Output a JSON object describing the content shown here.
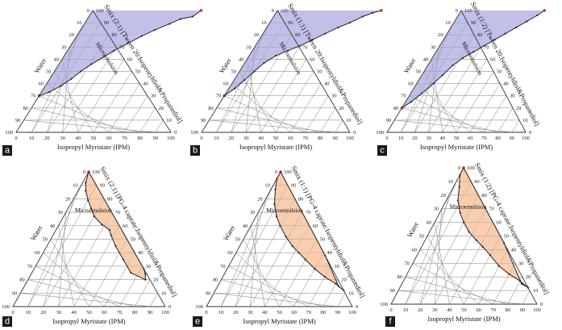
{
  "colors": {
    "purple_fill": "#b9b9e6",
    "orange_fill": "#f7c9a5",
    "boundary": "#222222",
    "grid": "#9a9a9a",
    "marker": "#d62828",
    "label_bg": "#1a1a1a"
  },
  "chart_data": [
    {
      "type": "ternary",
      "panel": "a",
      "left_label": "Water",
      "bottom_label": "Isopropyl Myristate (IPM)",
      "right_label": "Smix (2:1) [Tween 20:Isopentyldiol&Propanediol]",
      "region_label": "Microemulsion",
      "ticks": [
        0,
        10,
        20,
        30,
        40,
        50,
        60,
        70,
        80,
        90,
        100
      ],
      "fill": "purple",
      "boundary": [
        [
          0,
          30
        ],
        [
          5,
          33
        ],
        [
          10,
          38
        ],
        [
          14,
          44
        ],
        [
          17,
          50
        ],
        [
          21,
          56
        ],
        [
          26,
          62
        ],
        [
          30,
          67
        ],
        [
          36,
          73
        ],
        [
          42,
          79
        ],
        [
          48,
          84
        ],
        [
          55,
          89
        ],
        [
          60,
          93
        ],
        [
          67,
          95
        ],
        [
          70,
          100
        ]
      ],
      "red_points": [
        [
          0,
          30
        ],
        [
          70,
          100
        ]
      ]
    },
    {
      "type": "ternary",
      "panel": "b",
      "left_label": "Water",
      "bottom_label": "Isopropyl Myristate (IPM)",
      "right_label": "Smix (1:1) [Tween 20:Isopentyldiol&Propanediol]",
      "region_label": "Microemulsion",
      "ticks": [
        0,
        10,
        20,
        30,
        40,
        50,
        60,
        70,
        80,
        90,
        100
      ],
      "fill": "purple",
      "boundary": [
        [
          0,
          30
        ],
        [
          4,
          36
        ],
        [
          7,
          43
        ],
        [
          10,
          50
        ],
        [
          13,
          57
        ],
        [
          18,
          63
        ],
        [
          24,
          67
        ],
        [
          30,
          71
        ],
        [
          36,
          76
        ],
        [
          42,
          81
        ],
        [
          48,
          86
        ],
        [
          54,
          90
        ],
        [
          60,
          95
        ],
        [
          65,
          98
        ],
        [
          70,
          100
        ]
      ],
      "red_points": [
        [
          0,
          30
        ],
        [
          70,
          100
        ]
      ]
    },
    {
      "type": "ternary",
      "panel": "c",
      "left_label": "Water",
      "bottom_label": "Isopropyl Myristate (IPM)",
      "right_label": "Smix (1:2) [Tween 20:Isopentyldiol&Propanediol]",
      "region_label": "Microemulsion",
      "ticks": [
        0,
        10,
        20,
        30,
        40,
        50,
        60,
        70,
        80,
        90,
        100
      ],
      "fill": "purple",
      "boundary": [
        [
          0,
          20
        ],
        [
          4,
          25
        ],
        [
          8,
          32
        ],
        [
          12,
          40
        ],
        [
          15,
          47
        ],
        [
          18,
          55
        ],
        [
          22,
          61
        ],
        [
          27,
          66
        ],
        [
          32,
          71
        ],
        [
          37,
          76
        ],
        [
          42,
          81
        ],
        [
          47,
          86
        ],
        [
          52,
          91
        ],
        [
          57,
          96
        ],
        [
          60,
          100
        ]
      ],
      "red_points": [
        [
          0,
          20
        ],
        [
          60,
          100
        ]
      ]
    },
    {
      "type": "ternary",
      "panel": "d",
      "left_label": "Water",
      "bottom_label": "Isopropyl Myristate (IPM)",
      "right_label": "Smix (2:1) [PG-4 caprate:Isopentyldiol&Propanediol]",
      "region_label": "Microemulsion",
      "ticks": [
        0,
        10,
        20,
        30,
        40,
        50,
        60,
        70,
        80,
        90,
        100
      ],
      "fill": "orange",
      "boundary": [
        [
          0,
          100
        ],
        [
          72,
          28
        ],
        [
          75,
          24
        ],
        [
          77,
          20
        ],
        [
          65,
          25
        ],
        [
          55,
          35
        ],
        [
          45,
          45
        ],
        [
          38,
          53
        ],
        [
          35,
          57
        ],
        [
          28,
          61
        ],
        [
          20,
          67
        ],
        [
          15,
          73
        ],
        [
          10,
          79
        ],
        [
          5,
          86
        ],
        [
          2,
          92
        ],
        [
          0,
          100
        ]
      ],
      "red_points": [
        [
          0,
          100
        ]
      ]
    },
    {
      "type": "ternary",
      "panel": "e",
      "left_label": "Water",
      "bottom_label": "Isopropyl Myristate (IPM)",
      "right_label": "Smix (1:1) [PG-4 caprate:Isopentyldiol&Propanediol]",
      "region_label": "Microemulsion",
      "ticks": [
        0,
        10,
        20,
        30,
        40,
        50,
        60,
        70,
        80,
        90,
        100
      ],
      "fill": "orange",
      "boundary": [
        [
          0,
          100
        ],
        [
          62,
          38
        ],
        [
          83,
          15
        ],
        [
          88,
          12
        ],
        [
          80,
          17
        ],
        [
          70,
          22
        ],
        [
          60,
          28
        ],
        [
          50,
          35
        ],
        [
          43,
          40
        ],
        [
          36,
          45
        ],
        [
          28,
          52
        ],
        [
          20,
          60
        ],
        [
          14,
          67
        ],
        [
          8,
          76
        ],
        [
          3,
          87
        ],
        [
          0,
          95
        ],
        [
          0,
          100
        ]
      ],
      "red_points": [
        [
          0,
          100
        ]
      ]
    },
    {
      "type": "ternary",
      "panel": "f",
      "left_label": "Water",
      "bottom_label": "Isopropyl Myristate (IPM)",
      "right_label": "Smix (1:2) [PG-4 caprate:Isopentyldiol&Propanediol]",
      "region_label": "Microemulsion",
      "ticks": [
        0,
        10,
        20,
        30,
        40,
        50,
        60,
        70,
        80,
        90,
        100
      ],
      "fill": "orange",
      "boundary": [
        [
          0,
          100
        ],
        [
          55,
          45
        ],
        [
          82,
          15
        ],
        [
          88,
          12
        ],
        [
          80,
          17
        ],
        [
          70,
          22
        ],
        [
          60,
          28
        ],
        [
          50,
          36
        ],
        [
          42,
          42
        ],
        [
          35,
          47
        ],
        [
          27,
          53
        ],
        [
          20,
          60
        ],
        [
          14,
          67
        ],
        [
          8,
          76
        ],
        [
          4,
          86
        ],
        [
          0,
          95
        ],
        [
          0,
          100
        ]
      ],
      "red_points": [
        [
          0,
          100
        ]
      ]
    }
  ]
}
